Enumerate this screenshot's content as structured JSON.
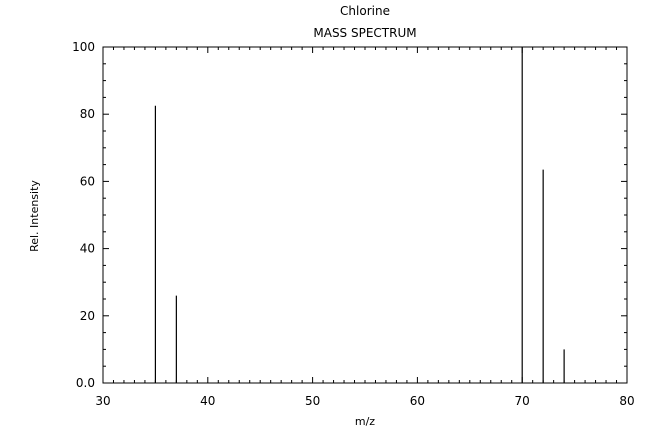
{
  "chart_data": {
    "type": "bar",
    "title": "Chlorine",
    "subtitle": "MASS SPECTRUM",
    "xlabel": "m/z",
    "ylabel": "Rel. Intensity",
    "xlim": [
      30,
      80
    ],
    "ylim": [
      0,
      100
    ],
    "x_ticks": [
      30,
      40,
      50,
      60,
      70,
      80
    ],
    "y_ticks": [
      0,
      20,
      40,
      60,
      80,
      100
    ],
    "y_tick_labels": [
      "0.0",
      "20",
      "40",
      "60",
      "80",
      "100"
    ],
    "grid": false,
    "series": [
      {
        "x": [
          35,
          37,
          70,
          72,
          74
        ],
        "values": [
          82.5,
          26,
          100,
          63.5,
          10
        ]
      }
    ]
  }
}
